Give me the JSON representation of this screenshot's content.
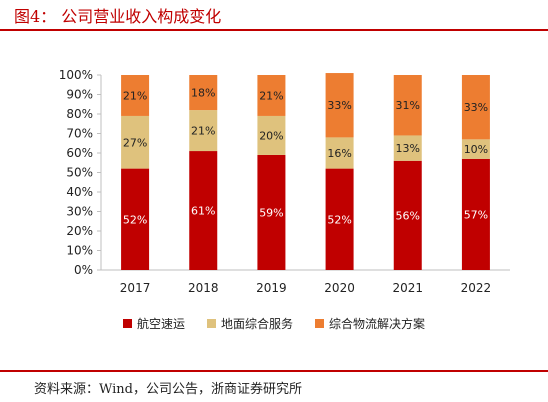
{
  "figure": {
    "title": "图4：  公司营业收入构成变化",
    "source": "资料来源：Wind，公司公告，浙商证券研究所"
  },
  "chart_data": {
    "type": "bar",
    "stacked": true,
    "categories": [
      "2017",
      "2018",
      "2019",
      "2020",
      "2021",
      "2022"
    ],
    "series": [
      {
        "name": "航空速运",
        "color": "#c00000",
        "values": [
          52,
          61,
          59,
          52,
          56,
          57
        ],
        "labels": [
          "52%",
          "61%",
          "59%",
          "52%",
          "56%",
          "57%"
        ]
      },
      {
        "name": "地面综合服务",
        "color": "#dfc27d",
        "values": [
          27,
          21,
          20,
          16,
          13,
          10
        ],
        "labels": [
          "27%",
          "21%",
          "20%",
          "16%",
          "13%",
          "10%"
        ]
      },
      {
        "name": "综合物流解决方案",
        "color": "#ed7d31",
        "values": [
          21,
          18,
          21,
          33,
          31,
          33
        ],
        "labels": [
          "21%",
          "18%",
          "21%",
          "33%",
          "31%",
          "33%"
        ]
      }
    ],
    "yticks": [
      "0%",
      "10%",
      "20%",
      "30%",
      "40%",
      "50%",
      "60%",
      "70%",
      "80%",
      "90%",
      "100%"
    ],
    "ylim": [
      0,
      100
    ],
    "legend": "bottom",
    "grid": false
  }
}
